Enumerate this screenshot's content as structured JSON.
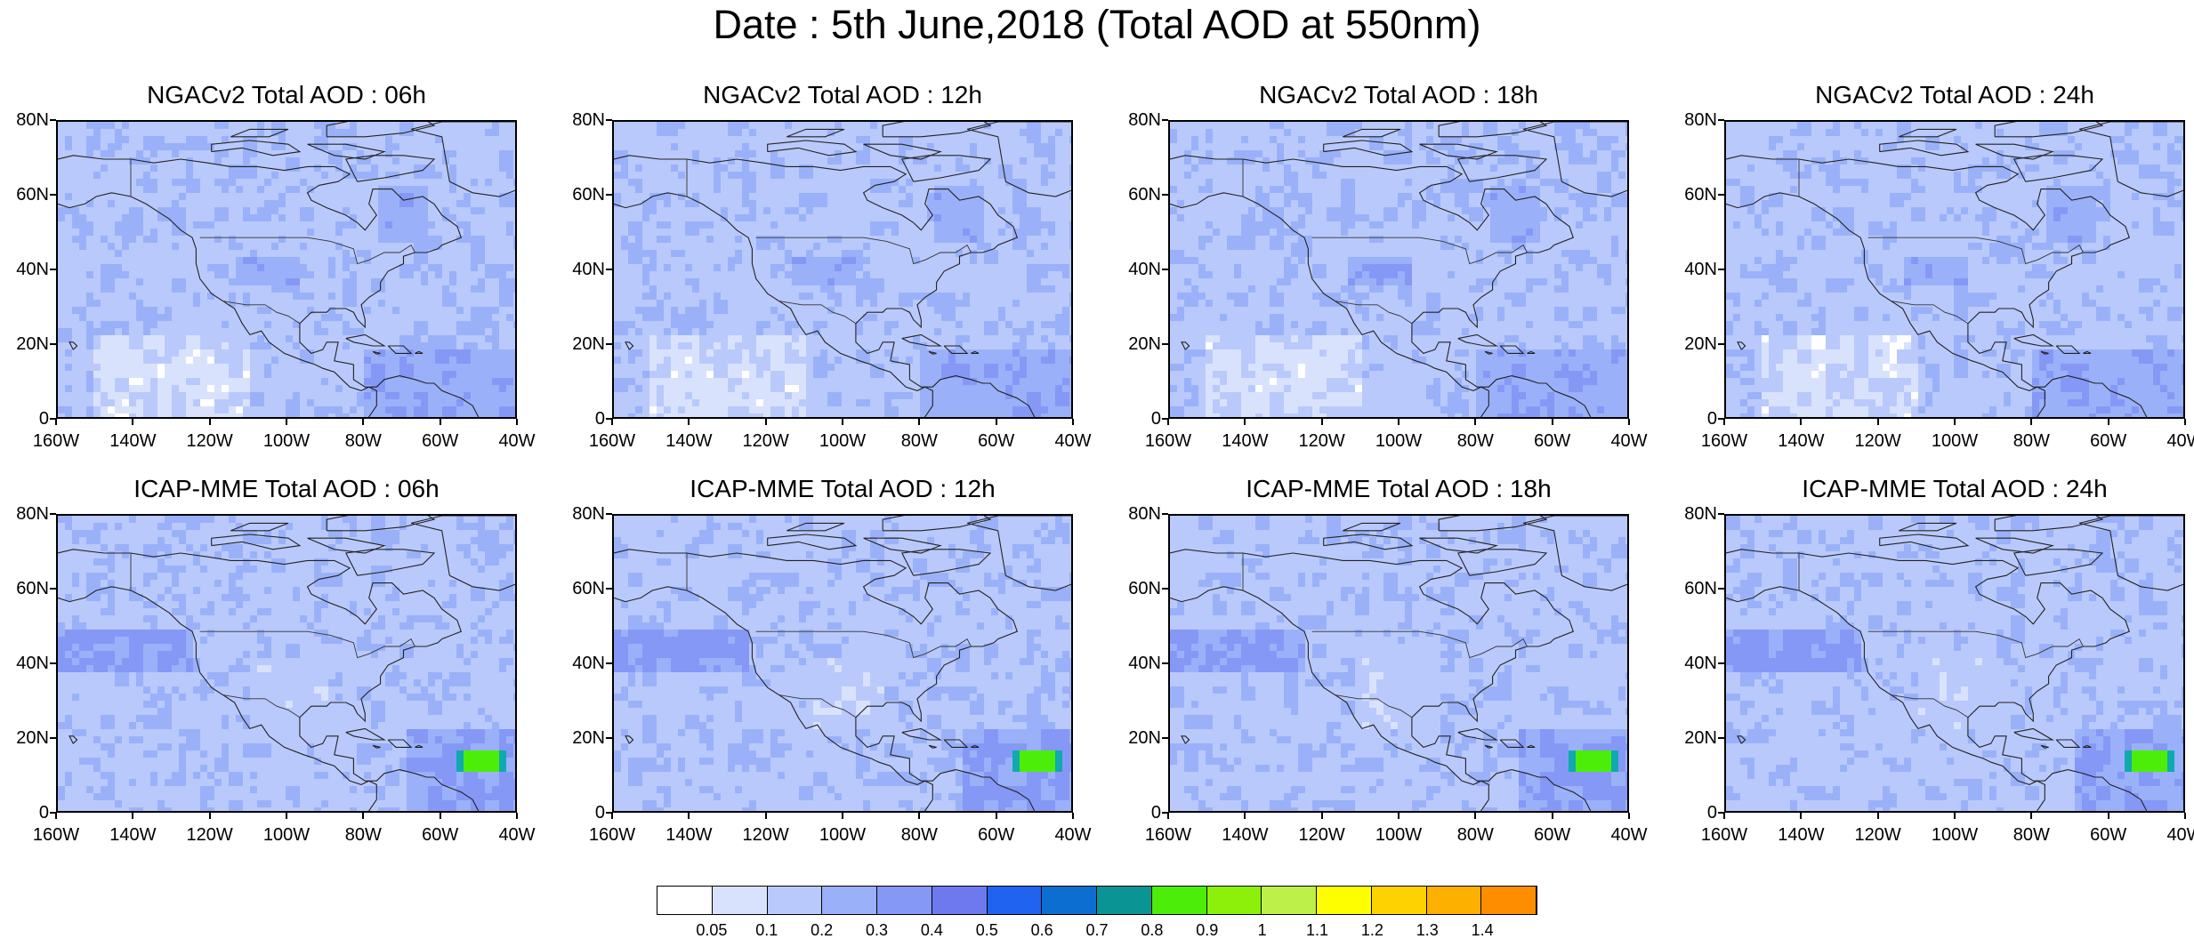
{
  "title": "Date : 5th June,2018 (Total AOD at 550nm)",
  "panels": [
    {
      "title": "NGACv2 Total AOD : 06h",
      "model": "NGACv2",
      "hour": "06h"
    },
    {
      "title": "NGACv2 Total AOD : 12h",
      "model": "NGACv2",
      "hour": "12h"
    },
    {
      "title": "NGACv2 Total AOD : 18h",
      "model": "NGACv2",
      "hour": "18h"
    },
    {
      "title": "NGACv2 Total AOD : 24h",
      "model": "NGACv2",
      "hour": "24h"
    },
    {
      "title": "ICAP-MME Total AOD : 06h",
      "model": "ICAP-MME",
      "hour": "06h"
    },
    {
      "title": "ICAP-MME Total AOD : 12h",
      "model": "ICAP-MME",
      "hour": "12h"
    },
    {
      "title": "ICAP-MME Total AOD : 18h",
      "model": "ICAP-MME",
      "hour": "18h"
    },
    {
      "title": "ICAP-MME Total AOD : 24h",
      "model": "ICAP-MME",
      "hour": "24h"
    }
  ],
  "axes": {
    "lat_ticks": [
      "80N",
      "60N",
      "40N",
      "20N",
      "0"
    ],
    "lon_ticks": [
      "160W",
      "140W",
      "120W",
      "100W",
      "80W",
      "60W",
      "40W"
    ],
    "lat_range": [
      0,
      80
    ],
    "lon_range": [
      -160,
      -40
    ]
  },
  "colorbar": {
    "colors": [
      "#ffffff",
      "#d9e2fd",
      "#b9c9fb",
      "#9ab1f9",
      "#8598f6",
      "#6e78ef",
      "#1f63f0",
      "#0d6ed2",
      "#0a9494",
      "#4ded0a",
      "#8cf00a",
      "#bdf048",
      "#fefe00",
      "#fed200",
      "#feb000",
      "#fe8e00",
      "#fe6a00",
      "#fe2a0a"
    ],
    "labels": [
      "0.05",
      "0.1",
      "0.2",
      "0.3",
      "0.4",
      "0.5",
      "0.6",
      "0.7",
      "0.8",
      "0.9",
      "1",
      "1.1",
      "1.2",
      "1.3",
      "1.4"
    ]
  }
}
